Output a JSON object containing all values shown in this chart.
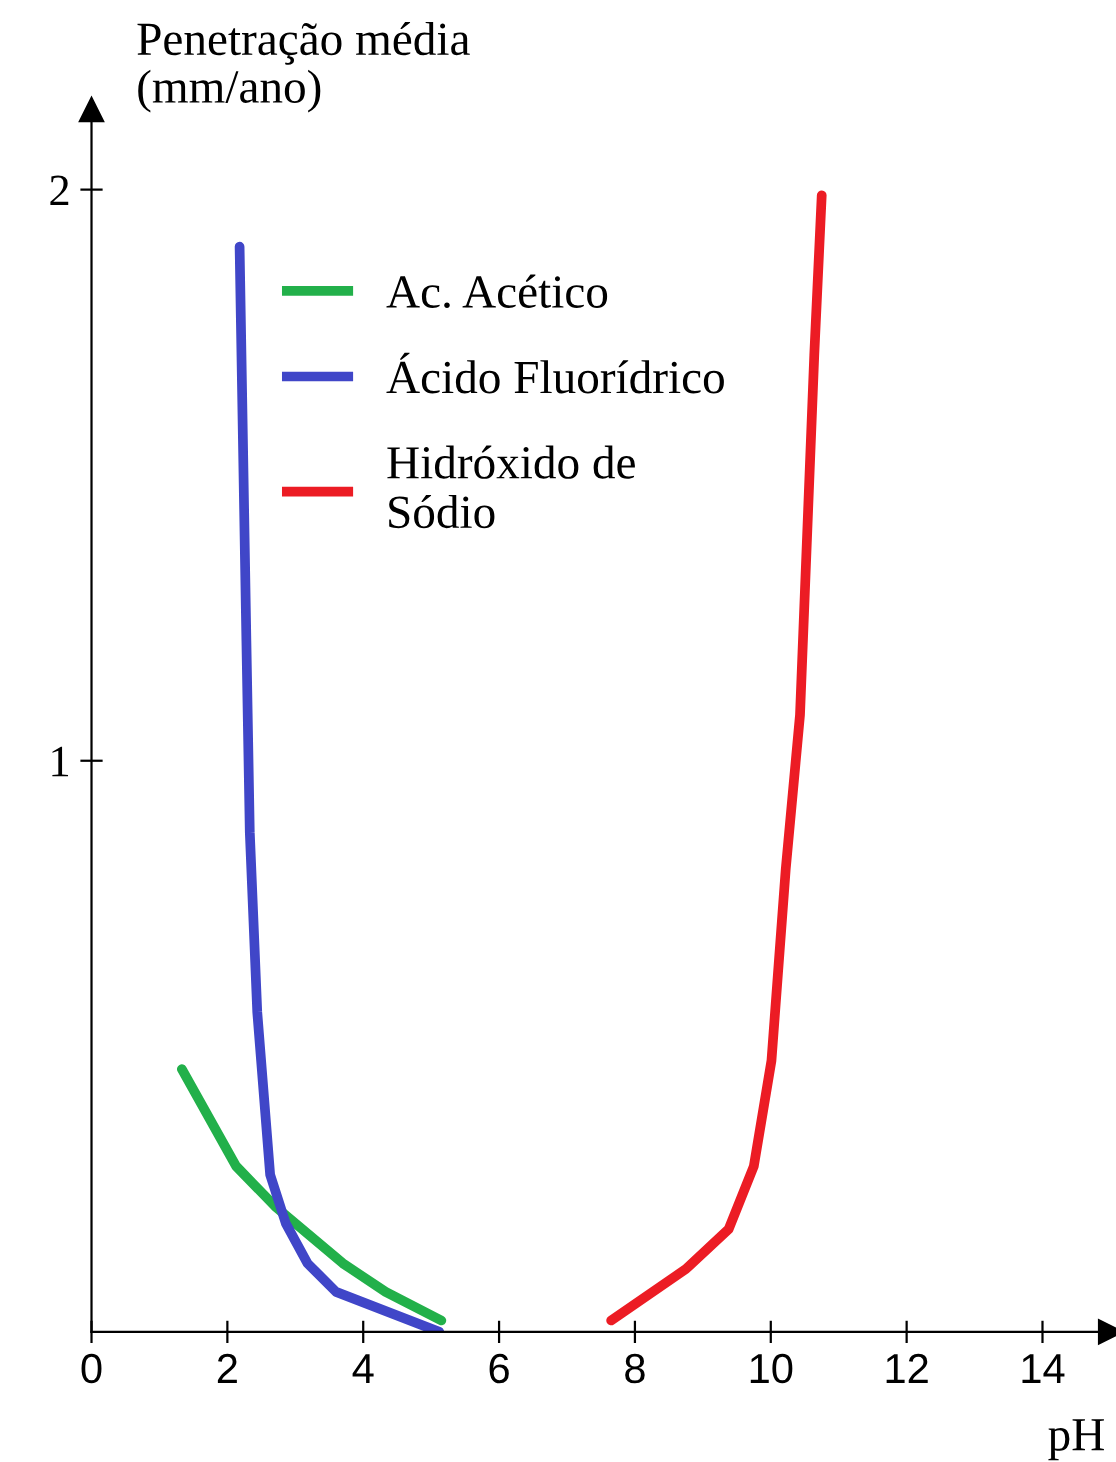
{
  "chart_data": {
    "type": "line",
    "ylabel": "Penetração média\n(mm/ano)",
    "xlabel": "pH",
    "xlim": [
      0,
      15
    ],
    "xticks": [
      0,
      2,
      4,
      6,
      8,
      10,
      12,
      14
    ],
    "ylim": [
      0,
      2.14
    ],
    "yticks": [
      1,
      2
    ],
    "grid": false,
    "legend": "top left",
    "marker": "none",
    "line_style": "solid",
    "series": [
      {
        "name": "Ac. Acético",
        "color": "#22b04a",
        "x": [
          1.33,
          2.13,
          2.7,
          3.7,
          4.33,
          5.15
        ],
        "values": [
          0.46,
          0.29,
          0.22,
          0.12,
          0.07,
          0.02
        ]
      },
      {
        "name": "Ácido Fluorídrico",
        "color": "#4046c8",
        "x": [
          2.18,
          2.28,
          2.33,
          2.44,
          2.63,
          2.86,
          3.18,
          3.6,
          5.12
        ],
        "values": [
          1.9,
          1.21,
          0.875,
          0.56,
          0.275,
          0.19,
          0.12,
          0.07,
          0
        ]
      },
      {
        "name": "Hidróxido de\nSódio",
        "color": "#ec1c24",
        "x": [
          7.65,
          8.75,
          9.38,
          9.75,
          10.01,
          10.22,
          10.43,
          10.64,
          10.75
        ],
        "values": [
          0.02,
          0.11,
          0.18,
          0.29,
          0.475,
          0.81,
          1.08,
          1.71,
          1.99
        ]
      }
    ]
  }
}
